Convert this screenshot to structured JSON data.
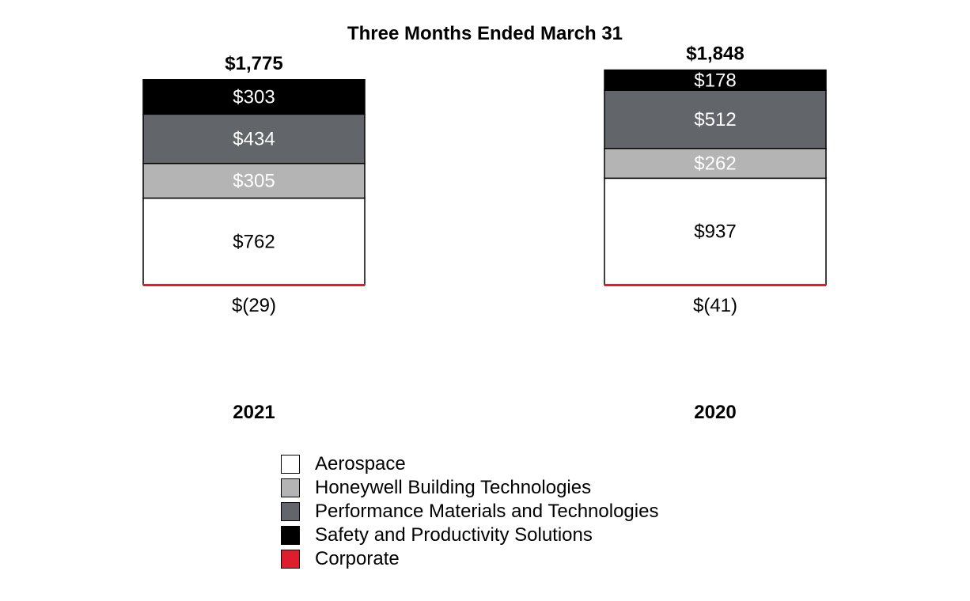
{
  "chart_data": {
    "type": "bar",
    "stacked": true,
    "title": "Three Months Ended March 31",
    "categories": [
      "2021",
      "2020"
    ],
    "totals": [
      1775,
      1848
    ],
    "total_labels": [
      "$1,775",
      "$1,848"
    ],
    "series": [
      {
        "name": "Aerospace",
        "color": "#ffffff",
        "values": [
          762,
          937
        ],
        "labels": [
          "$762",
          "$937"
        ],
        "text_color": "#000000"
      },
      {
        "name": "Honeywell Building Technologies",
        "color": "#b3b4b3",
        "values": [
          305,
          262
        ],
        "labels": [
          "$305",
          "$262"
        ],
        "text_color": "#ffffff"
      },
      {
        "name": "Performance Materials and Technologies",
        "color": "#626569",
        "values": [
          434,
          512
        ],
        "labels": [
          "$434",
          "$512"
        ],
        "text_color": "#ffffff"
      },
      {
        "name": "Safety and Productivity Solutions",
        "color": "#000000",
        "values": [
          303,
          178
        ],
        "labels": [
          "$303",
          "$178"
        ],
        "text_color": "#ffffff"
      },
      {
        "name": "Corporate",
        "color": "#dc1e2d",
        "values": [
          -29,
          -41
        ],
        "labels": [
          "$(29)",
          "$(41)"
        ],
        "text_color": "#000000"
      }
    ],
    "legend_position": "bottom",
    "grid": false
  }
}
